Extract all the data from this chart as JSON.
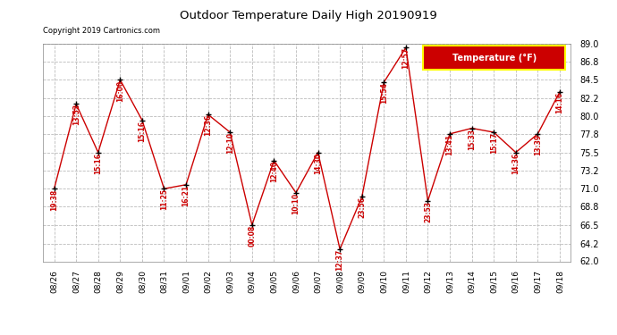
{
  "title": "Outdoor Temperature Daily High 20190919",
  "copyright": "Copyright 2019 Cartronics.com",
  "legend_label": "Temperature (°F)",
  "dates": [
    "08/26",
    "08/27",
    "08/28",
    "08/29",
    "08/30",
    "08/31",
    "09/01",
    "09/02",
    "09/03",
    "09/04",
    "09/05",
    "09/06",
    "09/07",
    "09/08",
    "09/09",
    "09/10",
    "09/11",
    "09/12",
    "09/13",
    "09/14",
    "09/15",
    "09/16",
    "09/17",
    "09/18"
  ],
  "temps": [
    71.0,
    81.5,
    75.5,
    84.5,
    79.5,
    71.0,
    71.5,
    80.2,
    78.0,
    66.5,
    74.5,
    70.5,
    75.5,
    63.5,
    70.0,
    84.2,
    88.5,
    69.5,
    77.8,
    78.5,
    78.0,
    75.5,
    77.8,
    83.0
  ],
  "time_labels": [
    "19:38",
    "13:52",
    "15:16",
    "16:00",
    "15:16",
    "11:25",
    "16:21",
    "12:36",
    "12:10",
    "00:08",
    "12:40",
    "10:10",
    "14:30",
    "12:37",
    "23:56",
    "15:54",
    "12:57",
    "23:53",
    "13:41",
    "15:33",
    "15:17",
    "14:36",
    "13:39",
    "14:16"
  ],
  "ylim": [
    62.0,
    89.0
  ],
  "yticks": [
    62.0,
    64.2,
    66.5,
    68.8,
    71.0,
    73.2,
    75.5,
    77.8,
    80.0,
    82.2,
    84.5,
    86.8,
    89.0
  ],
  "line_color": "#cc0000",
  "marker_color": "#000000",
  "label_color": "#cc0000",
  "title_color": "#000000",
  "bg_color": "#ffffff",
  "grid_color": "#bbbbbb",
  "copyright_color": "#000000",
  "legend_bg": "#cc0000",
  "legend_text_color": "#ffffff",
  "legend_border": "#ffff00"
}
